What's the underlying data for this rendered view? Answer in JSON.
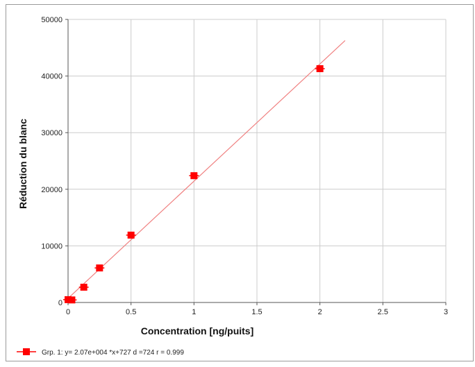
{
  "chart_data": {
    "type": "scatter",
    "title": "",
    "xlabel": "Concentration [ng/puits]",
    "ylabel": "Réduction du blanc",
    "xlim": [
      0,
      3
    ],
    "ylim": [
      0,
      50000
    ],
    "x_ticks": [
      "0",
      "0.5",
      "1",
      "1.5",
      "2",
      "2.5",
      "3"
    ],
    "y_ticks": [
      "0",
      "10000",
      "20000",
      "30000",
      "40000",
      "50000"
    ],
    "grid": true,
    "legend_position": "bottom-left",
    "series": [
      {
        "name": "Grp. 1: y= 2.07e+004 *x+727  d =724  r = 0.999",
        "color": "#ff0000",
        "marker": "square",
        "points": [
          {
            "x": 0.0,
            "y": 500
          },
          {
            "x": 0.03,
            "y": 450
          },
          {
            "x": 0.125,
            "y": 2700
          },
          {
            "x": 0.25,
            "y": 6100
          },
          {
            "x": 0.5,
            "y": 11900
          },
          {
            "x": 1.0,
            "y": 22400
          },
          {
            "x": 2.0,
            "y": 41300
          }
        ],
        "fit": {
          "slope": 20700,
          "intercept": 727,
          "x_range": [
            0,
            2.2
          ],
          "color": "#f08080"
        }
      }
    ]
  }
}
